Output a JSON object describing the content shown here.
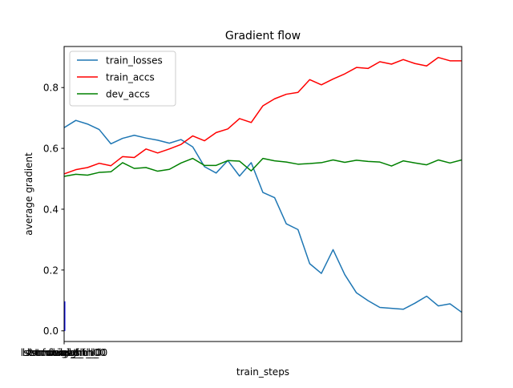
{
  "chart_data": {
    "type": "line",
    "title": "Gradient flow",
    "xlabel": "train_steps",
    "ylabel": "average gradient",
    "xlim": [
      0,
      1
    ],
    "ylim": [
      -0.035,
      0.935
    ],
    "yticks": [
      0.0,
      0.2,
      0.4,
      0.6,
      0.8
    ],
    "ytick_labels": [
      "0.0",
      "0.2",
      "0.4",
      "0.6",
      "0.8"
    ],
    "xtick_labels": [
      "lstm.weight_ih_l0",
      "lstm.weight_hh_l0",
      "lstm.bias_ih_l0",
      "lstm.bias_hh_l0",
      "fc.weight",
      "fc.bias"
    ],
    "grid": false,
    "legend_position": "upper-left",
    "series": [
      {
        "name": "train_losses",
        "color": "#1f77b4",
        "values": [
          0.668,
          0.692,
          0.68,
          0.662,
          0.615,
          0.633,
          0.643,
          0.634,
          0.627,
          0.617,
          0.629,
          0.605,
          0.54,
          0.519,
          0.56,
          0.509,
          0.553,
          0.455,
          0.438,
          0.352,
          0.333,
          0.221,
          0.189,
          0.267,
          0.185,
          0.125,
          0.099,
          0.077,
          0.074,
          0.071,
          0.091,
          0.114,
          0.082,
          0.089,
          0.061
        ]
      },
      {
        "name": "train_accs",
        "color": "#ff0000",
        "values": [
          0.516,
          0.53,
          0.537,
          0.551,
          0.543,
          0.573,
          0.57,
          0.598,
          0.585,
          0.598,
          0.613,
          0.641,
          0.625,
          0.652,
          0.664,
          0.698,
          0.685,
          0.74,
          0.763,
          0.778,
          0.784,
          0.826,
          0.809,
          0.828,
          0.845,
          0.866,
          0.863,
          0.885,
          0.877,
          0.892,
          0.879,
          0.871,
          0.899,
          0.888,
          0.888
        ]
      },
      {
        "name": "dev_accs",
        "color": "#008000",
        "values": [
          0.508,
          0.515,
          0.512,
          0.521,
          0.523,
          0.553,
          0.534,
          0.537,
          0.525,
          0.531,
          0.552,
          0.567,
          0.544,
          0.544,
          0.56,
          0.558,
          0.526,
          0.567,
          0.559,
          0.555,
          0.548,
          0.55,
          0.553,
          0.562,
          0.554,
          0.561,
          0.557,
          0.555,
          0.542,
          0.559,
          0.552,
          0.546,
          0.562,
          0.552,
          0.562
        ]
      }
    ],
    "bar_overlay": {
      "color": "#0000ff",
      "values": [
        0.097,
        0.02,
        0.0,
        0.0,
        0.0,
        0.0
      ]
    }
  }
}
